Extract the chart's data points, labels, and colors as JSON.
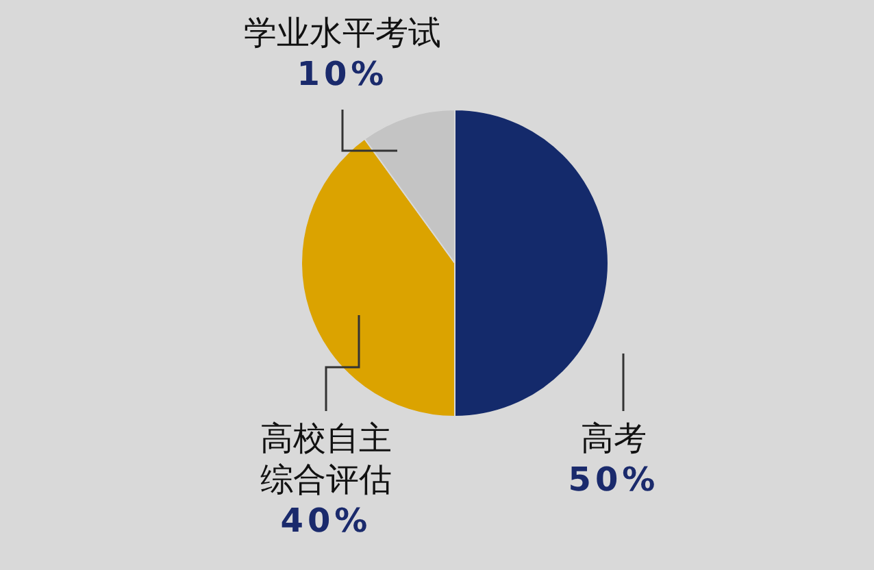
{
  "chart_data": {
    "type": "pie",
    "categories": [
      "高考",
      "高校自主综合评估",
      "学业水平考试"
    ],
    "values": [
      50,
      40,
      10
    ],
    "colors": [
      "#142a6b",
      "#dba300",
      "#c4c4c4"
    ],
    "value_labels": [
      "50%",
      "40%",
      "10%"
    ]
  }
}
